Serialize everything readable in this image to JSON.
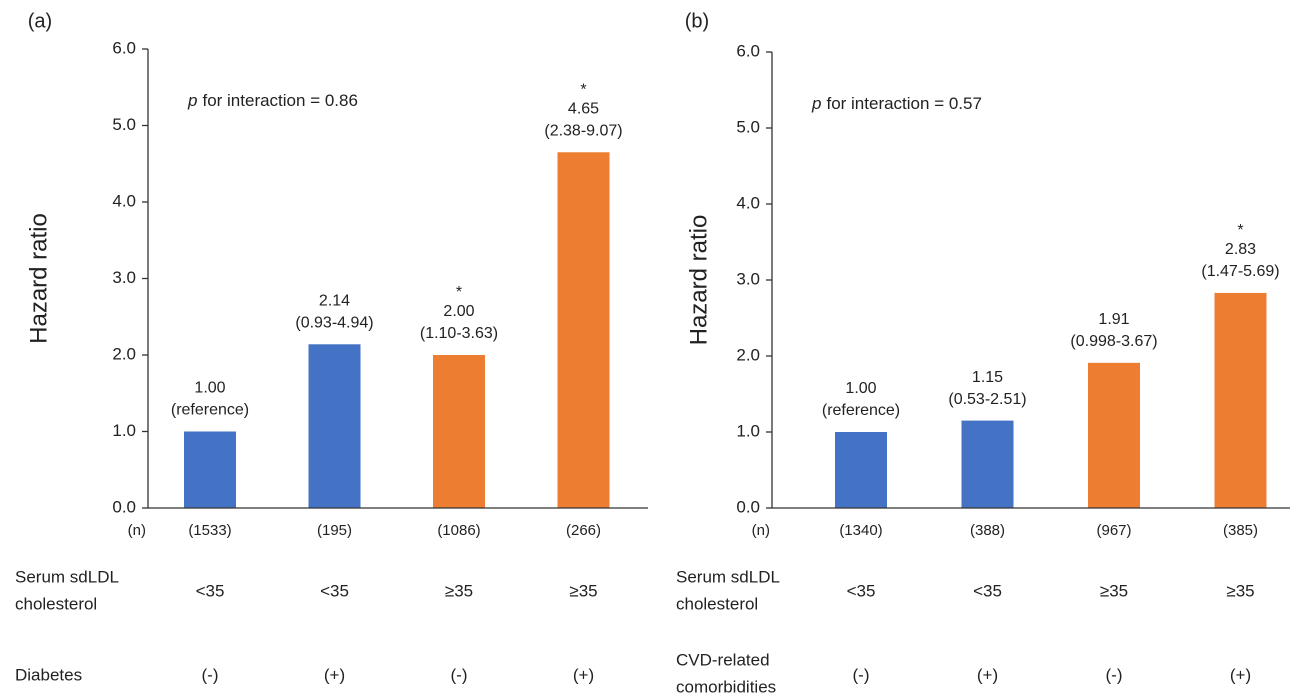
{
  "chart_data": [
    {
      "type": "bar",
      "panel_label": "(a)",
      "ylabel": "Hazard ratio",
      "annotation_italic": "p",
      "annotation": "for interaction = 0.86",
      "values": [
        1.0,
        2.14,
        2.0,
        4.65
      ],
      "value_labels": [
        "1.00",
        "2.14",
        "2.00",
        "4.65"
      ],
      "ci_labels": [
        "(reference)",
        "(0.93-4.94)",
        "(1.10-3.63)",
        "(2.38-9.07)"
      ],
      "significance": [
        null,
        null,
        "*",
        "*"
      ],
      "colors": [
        "#4472c4",
        "#4472c4",
        "#ed7d31",
        "#ed7d31"
      ],
      "ylim": [
        0,
        6
      ],
      "yticks": [
        {
          "value": 0,
          "label": "0.0"
        },
        {
          "value": 1,
          "label": "1.0"
        },
        {
          "value": 2,
          "label": "2.0"
        },
        {
          "value": 3,
          "label": "3.0"
        },
        {
          "value": 4,
          "label": "4.0"
        },
        {
          "value": 5,
          "label": "5.0"
        },
        {
          "value": 6,
          "label": "6.0"
        }
      ],
      "n_label": "(n)",
      "n": [
        "(1533)",
        "(195)",
        "(1086)",
        "(266)"
      ],
      "rows": [
        {
          "label": [
            "Serum sdLDL",
            "cholesterol"
          ],
          "values": [
            "<35",
            "<35",
            "≥35",
            "≥35"
          ]
        },
        {
          "label": [
            "Diabetes"
          ],
          "values": [
            "(-)",
            "(+)",
            "(-)",
            "(+)"
          ]
        }
      ]
    },
    {
      "type": "bar",
      "panel_label": "(b)",
      "ylabel": "Hazard ratio",
      "annotation_italic": "p",
      "annotation": "for interaction = 0.57",
      "values": [
        1.0,
        1.15,
        1.91,
        2.83
      ],
      "value_labels": [
        "1.00",
        "1.15",
        "1.91",
        "2.83"
      ],
      "ci_labels": [
        "(reference)",
        "(0.53-2.51)",
        "(0.998-3.67)",
        "(1.47-5.69)"
      ],
      "significance": [
        null,
        null,
        null,
        "*"
      ],
      "colors": [
        "#4472c4",
        "#4472c4",
        "#ed7d31",
        "#ed7d31"
      ],
      "ylim": [
        0,
        6
      ],
      "yticks": [
        {
          "value": 0,
          "label": "0.0"
        },
        {
          "value": 1,
          "label": "1.0"
        },
        {
          "value": 2,
          "label": "2.0"
        },
        {
          "value": 3,
          "label": "3.0"
        },
        {
          "value": 4,
          "label": "4.0"
        },
        {
          "value": 5,
          "label": "5.0"
        },
        {
          "value": 6,
          "label": "6.0"
        }
      ],
      "n_label": "(n)",
      "n": [
        "(1340)",
        "(388)",
        "(967)",
        "(385)"
      ],
      "rows": [
        {
          "label": [
            "Serum sdLDL",
            "cholesterol"
          ],
          "values": [
            "<35",
            "<35",
            "≥35",
            "≥35"
          ]
        },
        {
          "label": [
            "CVD-related",
            "comorbidities"
          ],
          "values": [
            "(-)",
            "(+)",
            "(-)",
            "(+)"
          ]
        }
      ]
    }
  ]
}
